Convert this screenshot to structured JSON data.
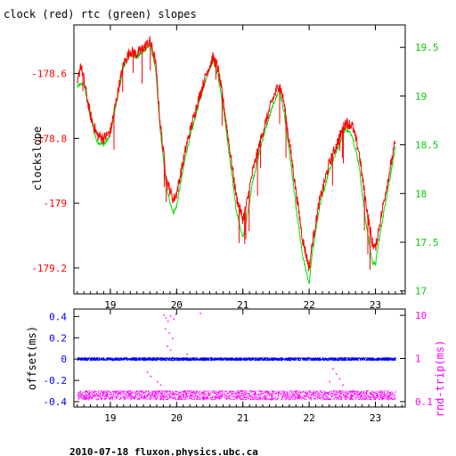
{
  "figure": {
    "title": "clock (red) rtc (green) slopes",
    "footer": "2010-07-18 fluxon.physics.ubc.ca"
  },
  "colors": {
    "clock": "#ff0000",
    "rtc": "#00e000",
    "offset": "#0000ff",
    "rtt": "#ff00ff",
    "frame": "#000000",
    "upper_right_axis": "#00cc00",
    "lower_left_axis": "#0000ff",
    "lower_right_axis": "#ff00ff"
  },
  "chart_data": [
    {
      "type": "line",
      "title": "clock (red) rtc (green) slopes",
      "xlabel": "",
      "ylabel": "clockslope",
      "xlim": [
        18.45,
        23.45
      ],
      "ylim": [
        -179.28,
        -178.45
      ],
      "x_ticks": [
        "19",
        "20",
        "21",
        "22",
        "23"
      ],
      "x_tick_values": [
        19,
        20,
        21,
        22,
        23
      ],
      "y_ticks": [
        "-178.6",
        "-178.8",
        "-179",
        "-179.2"
      ],
      "y_tick_values": [
        -178.6,
        -178.8,
        -179.0,
        -179.2
      ],
      "right_axis": {
        "ylim": [
          16.97,
          19.73
        ],
        "ticks": [
          "19.5",
          "19",
          "18.5",
          "18",
          "17.5",
          "17"
        ],
        "tick_values": [
          19.5,
          19.0,
          18.5,
          18.0,
          17.5,
          17.0
        ]
      },
      "grid": false,
      "series": [
        {
          "name": "clock",
          "color": "#ff0000",
          "x": [
            18.5,
            18.55,
            18.6,
            18.7,
            18.8,
            18.9,
            19.0,
            19.1,
            19.2,
            19.3,
            19.4,
            19.5,
            19.6,
            19.68,
            19.75,
            19.85,
            19.95,
            20.0,
            20.05,
            20.15,
            20.3,
            20.45,
            20.55,
            20.62,
            20.7,
            20.8,
            20.9,
            21.0,
            21.05,
            21.15,
            21.3,
            21.45,
            21.55,
            21.62,
            21.7,
            21.8,
            21.9,
            22.0,
            22.05,
            22.15,
            22.3,
            22.45,
            22.55,
            22.65,
            22.75,
            22.85,
            22.95,
            23.0,
            23.05,
            23.15,
            23.3
          ],
          "y": [
            -178.64,
            -178.57,
            -178.62,
            -178.73,
            -178.79,
            -178.8,
            -178.78,
            -178.67,
            -178.57,
            -178.53,
            -178.54,
            -178.52,
            -178.5,
            -178.56,
            -178.75,
            -178.93,
            -178.99,
            -178.97,
            -178.92,
            -178.82,
            -178.7,
            -178.6,
            -178.55,
            -178.58,
            -178.68,
            -178.83,
            -178.98,
            -179.05,
            -179.01,
            -178.9,
            -178.78,
            -178.68,
            -178.63,
            -178.69,
            -178.81,
            -178.96,
            -179.11,
            -179.2,
            -179.12,
            -179.0,
            -178.88,
            -178.8,
            -178.75,
            -178.76,
            -178.84,
            -178.99,
            -179.12,
            -179.14,
            -179.08,
            -178.97,
            -178.81
          ]
        },
        {
          "name": "rtc",
          "color": "#00e000",
          "x": [
            18.5,
            18.6,
            18.7,
            18.8,
            18.9,
            19.0,
            19.1,
            19.2,
            19.3,
            19.4,
            19.5,
            19.6,
            19.68,
            19.75,
            19.85,
            19.95,
            20.0,
            20.05,
            20.15,
            20.3,
            20.45,
            20.55,
            20.62,
            20.7,
            20.8,
            20.9,
            21.0,
            21.05,
            21.15,
            21.3,
            21.45,
            21.55,
            21.62,
            21.7,
            21.8,
            21.9,
            22.0,
            22.05,
            22.15,
            22.3,
            22.45,
            22.55,
            22.65,
            22.75,
            22.85,
            22.95,
            23.0,
            23.05,
            23.15,
            23.3
          ],
          "y": [
            -178.64,
            -178.63,
            -178.74,
            -178.81,
            -178.82,
            -178.79,
            -178.68,
            -178.58,
            -178.54,
            -178.55,
            -178.53,
            -178.51,
            -178.58,
            -178.77,
            -178.96,
            -179.03,
            -179.01,
            -178.95,
            -178.84,
            -178.72,
            -178.61,
            -178.56,
            -178.6,
            -178.7,
            -178.86,
            -179.02,
            -179.11,
            -179.06,
            -178.93,
            -178.8,
            -178.7,
            -178.65,
            -178.72,
            -178.84,
            -179.01,
            -179.16,
            -179.25,
            -179.15,
            -179.02,
            -178.9,
            -178.82,
            -178.77,
            -178.79,
            -178.88,
            -179.05,
            -179.18,
            -179.19,
            -179.12,
            -179.0,
            -178.83
          ]
        }
      ]
    },
    {
      "type": "scatter",
      "title": "",
      "xlabel": "",
      "ylabel": "offset(ms)",
      "xlim": [
        18.45,
        23.45
      ],
      "ylim": [
        -0.45,
        0.47
      ],
      "x_ticks": [
        "19",
        "20",
        "21",
        "22",
        "23"
      ],
      "x_tick_values": [
        19,
        20,
        21,
        22,
        23
      ],
      "y_ticks": [
        "0.4",
        "0.2",
        "0",
        "-0.2",
        "-0.4"
      ],
      "y_tick_values": [
        0.4,
        0.2,
        0.0,
        -0.2,
        -0.4
      ],
      "right_axis": {
        "label": "rnd-trip(ms)",
        "scale": "log",
        "ylim": [
          0.075,
          14
        ],
        "ticks": [
          "10",
          "1",
          "0.1"
        ],
        "tick_values": [
          10,
          1,
          0.1
        ]
      },
      "grid": false,
      "series": [
        {
          "name": "offset",
          "color": "#0000ff",
          "x_range": [
            18.5,
            23.3
          ],
          "y_center": 0.0,
          "y_spread": 0.012
        },
        {
          "name": "rnd-trip",
          "color": "#ff00ff",
          "x_range": [
            18.5,
            23.3
          ],
          "y_center": 0.14,
          "y_spread_low": 0.11,
          "y_spread_high": 0.18,
          "outliers": [
            {
              "x": 19.8,
              "y": 10.5
            },
            {
              "x": 19.83,
              "y": 9.0
            },
            {
              "x": 19.86,
              "y": 7.5
            },
            {
              "x": 19.9,
              "y": 10.0
            },
            {
              "x": 19.95,
              "y": 8.5
            },
            {
              "x": 19.98,
              "y": 11.0
            },
            {
              "x": 19.82,
              "y": 5.0
            },
            {
              "x": 19.88,
              "y": 4.0
            },
            {
              "x": 19.93,
              "y": 3.0
            },
            {
              "x": 19.85,
              "y": 2.0
            },
            {
              "x": 19.9,
              "y": 1.6
            },
            {
              "x": 20.35,
              "y": 11.5
            },
            {
              "x": 20.15,
              "y": 1.3
            },
            {
              "x": 19.55,
              "y": 0.5
            },
            {
              "x": 19.6,
              "y": 0.4
            },
            {
              "x": 19.7,
              "y": 0.3
            },
            {
              "x": 19.75,
              "y": 0.25
            },
            {
              "x": 22.35,
              "y": 0.6
            },
            {
              "x": 22.4,
              "y": 0.45
            },
            {
              "x": 22.45,
              "y": 0.35
            },
            {
              "x": 22.3,
              "y": 0.3
            },
            {
              "x": 22.5,
              "y": 0.25
            }
          ]
        }
      ]
    }
  ]
}
